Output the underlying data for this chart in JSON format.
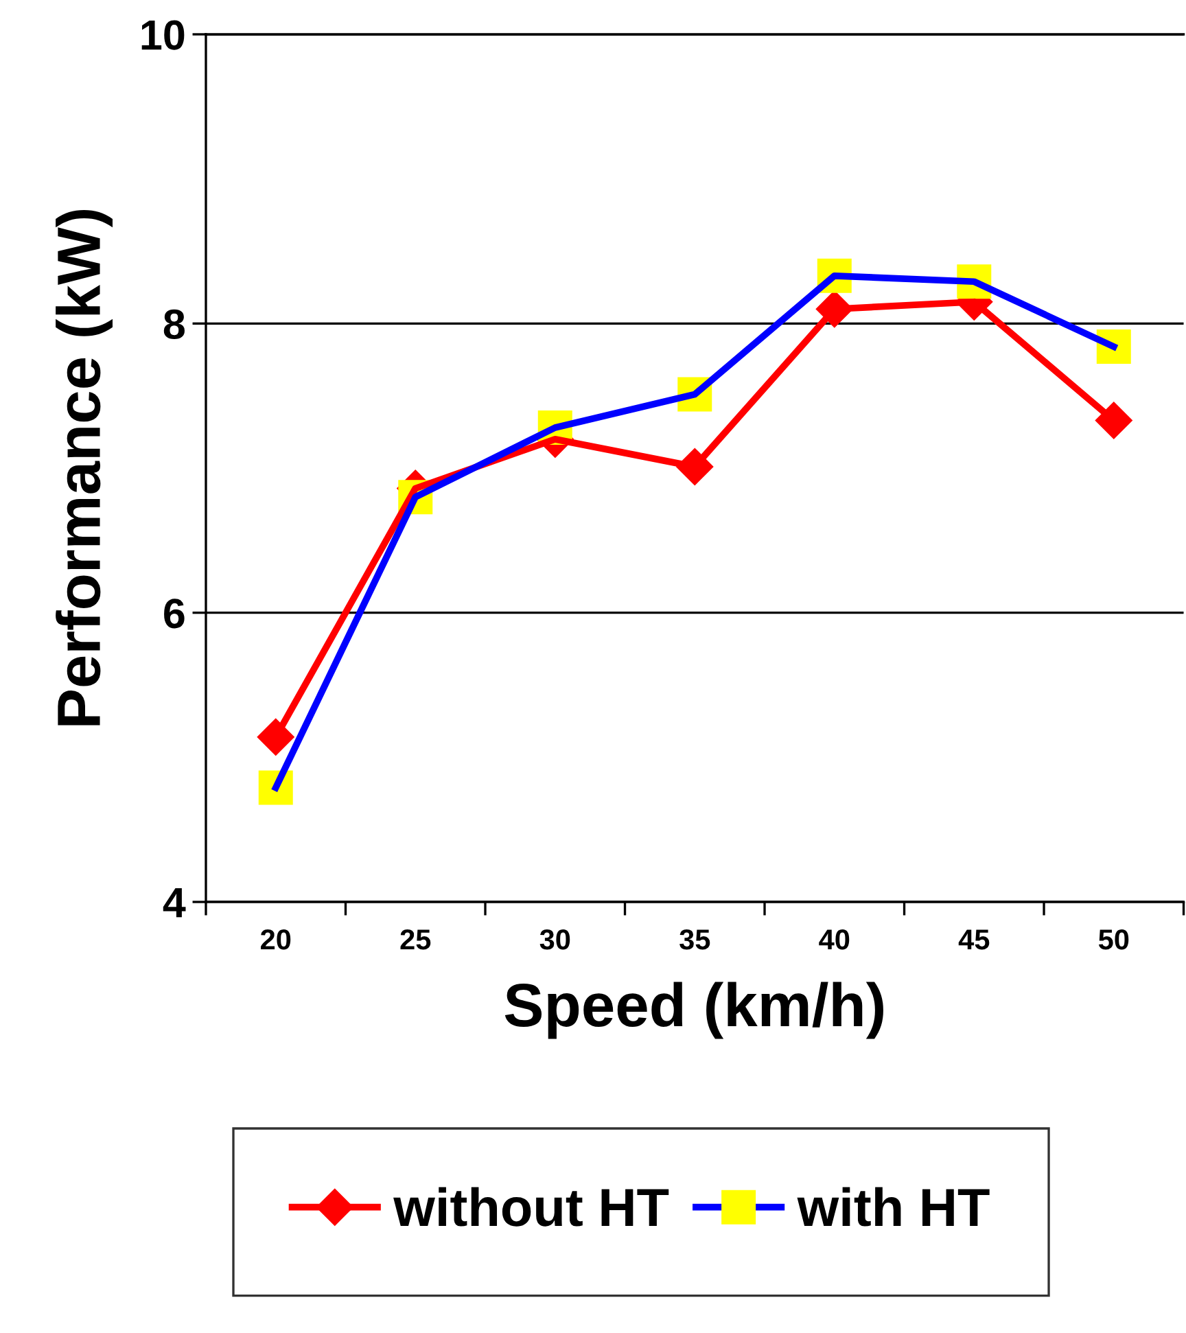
{
  "chart_data": {
    "type": "line",
    "xlabel": "Speed (km/h)",
    "ylabel": "Performance (kW)",
    "categories": [
      "20",
      "25",
      "30",
      "35",
      "40",
      "45",
      "50"
    ],
    "series": [
      {
        "name": "without HT",
        "color": "#ff0000",
        "marker": "diamond",
        "values": [
          5.14,
          6.86,
          7.2,
          7.01,
          8.1,
          8.15,
          7.33
        ]
      },
      {
        "name": "with HT",
        "color": "#0000ff",
        "marker": "square",
        "colors": [
          "#ffff00",
          "#ffff00",
          "#ffff00",
          "#ffff00",
          "#ffff00",
          "#ffff00",
          "#ffff00"
        ],
        "values": [
          4.79,
          6.8,
          7.28,
          7.51,
          8.33,
          8.29,
          7.84
        ]
      }
    ],
    "ylim": [
      4,
      10
    ],
    "yticks": [
      4,
      6,
      8,
      10
    ],
    "grid": "y",
    "legend": "bottom",
    "line_style": "solid"
  }
}
